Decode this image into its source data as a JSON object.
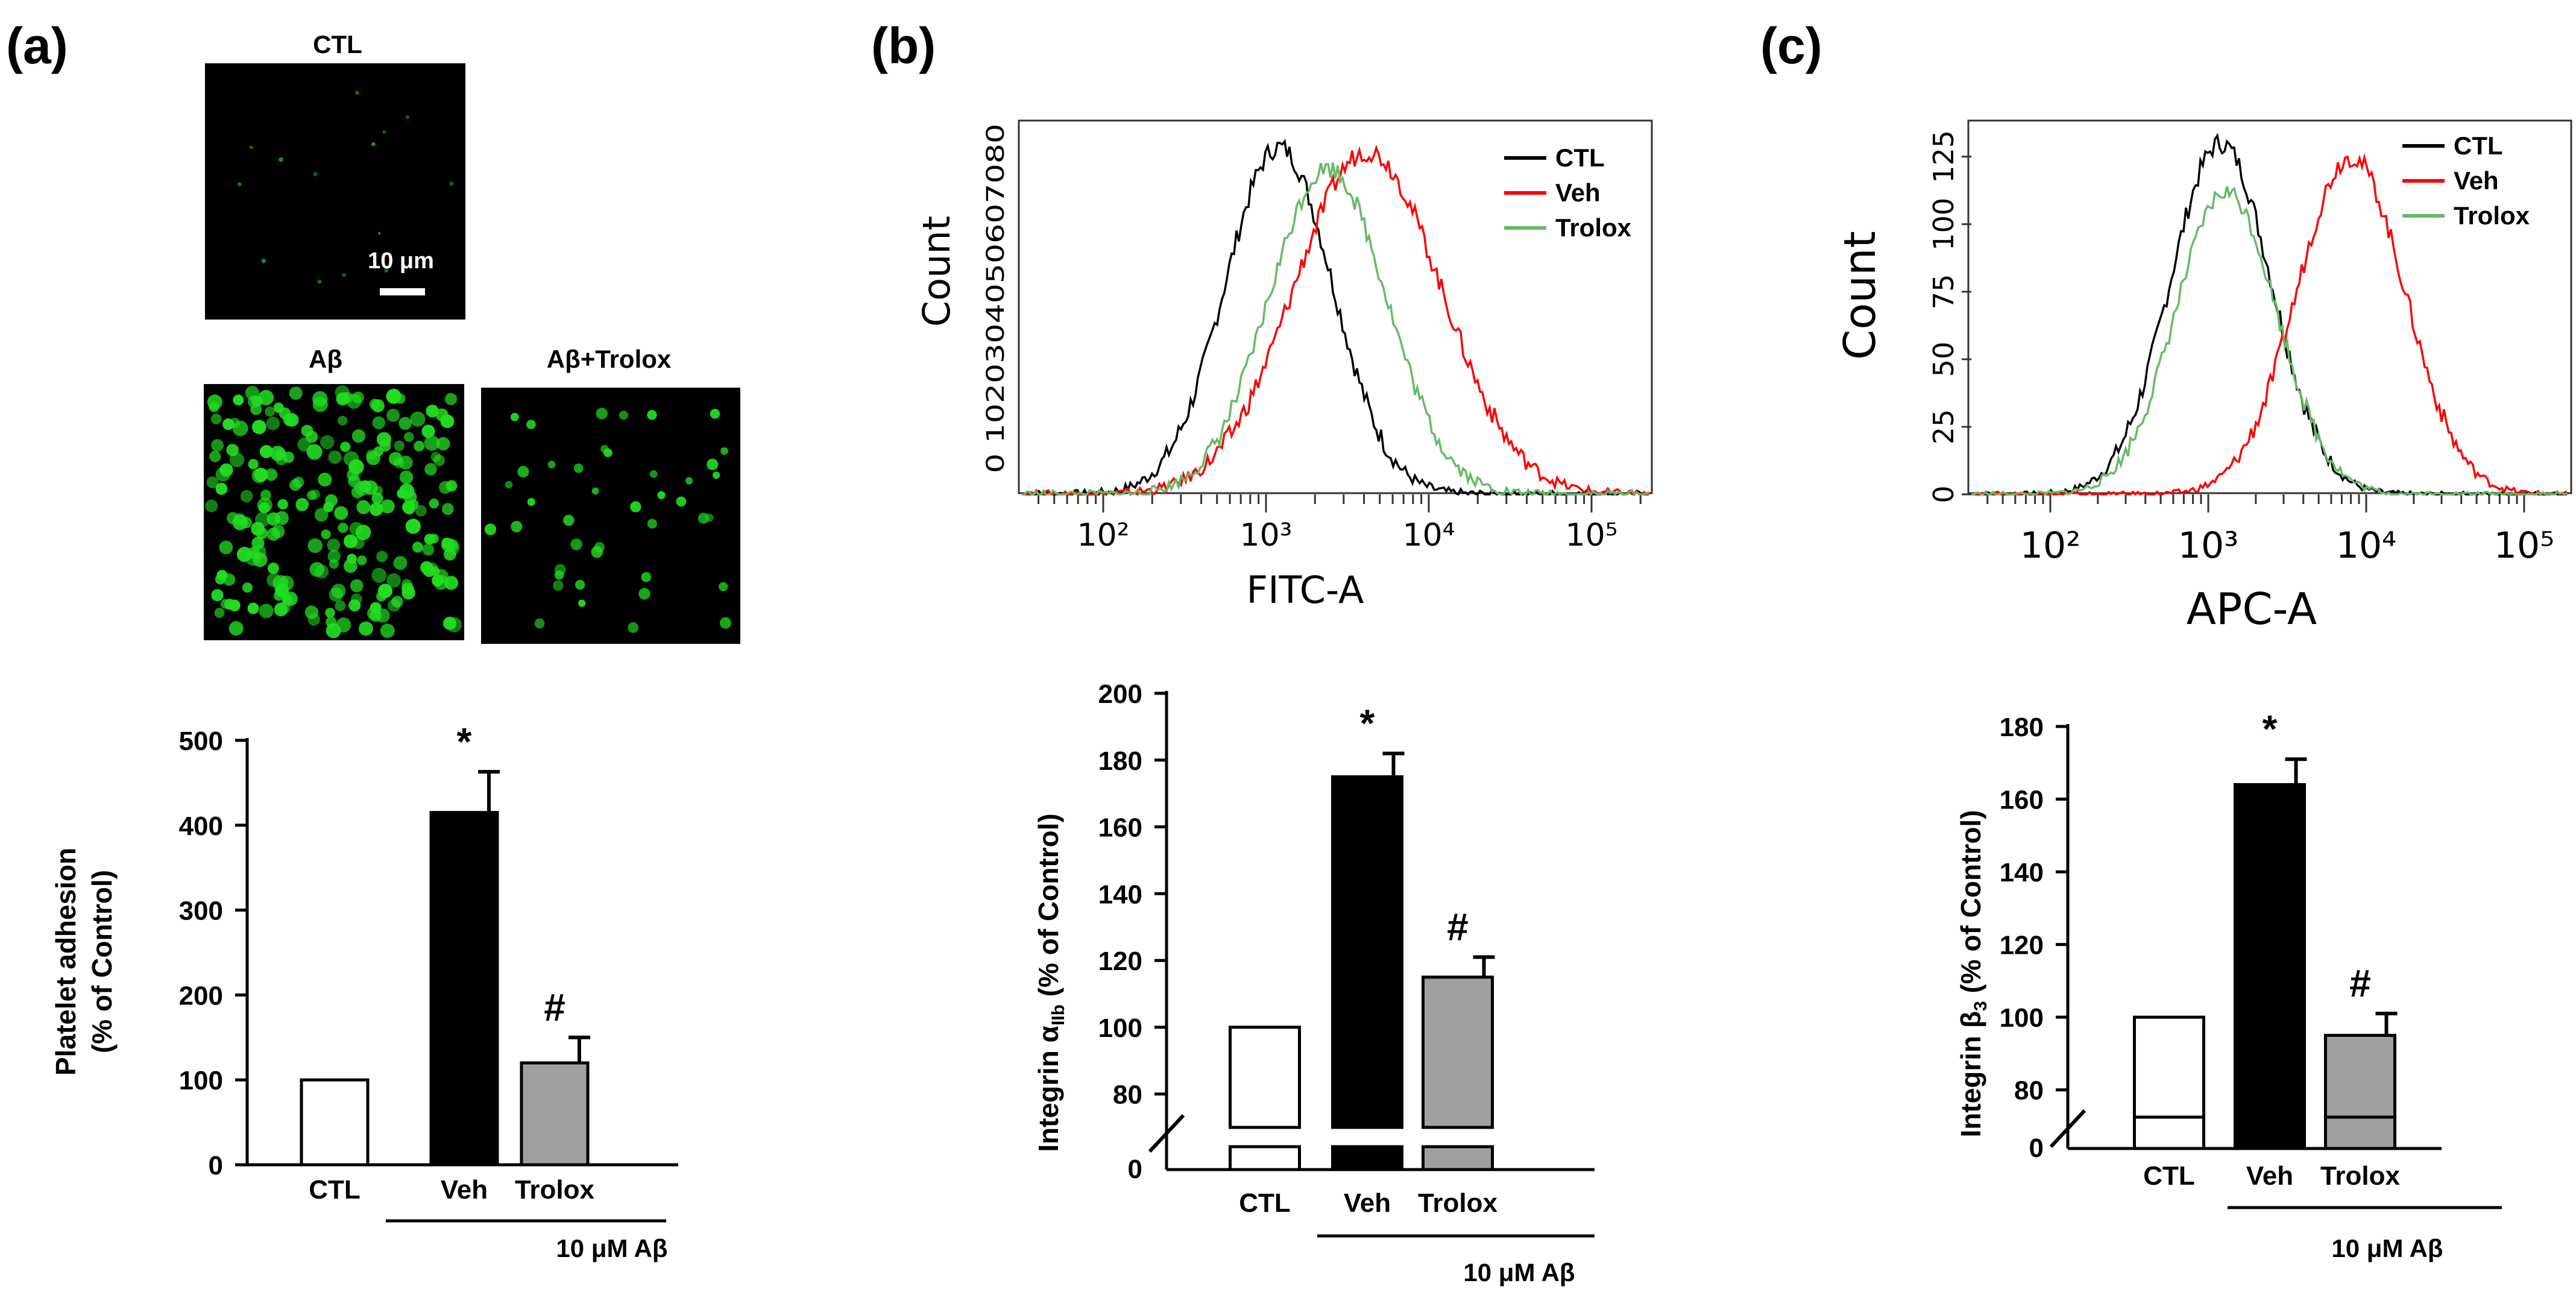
{
  "panels": [
    {
      "label": "(a)"
    },
    {
      "label": "(b)"
    },
    {
      "label": "(c)"
    }
  ],
  "micrographs": {
    "titles": [
      "CTL",
      "Aβ",
      "Aβ+Trolox"
    ],
    "scale_label": "10 μm",
    "fluorescence_color": "#22dd22"
  },
  "colors": {
    "ctl": "#000000",
    "veh": "#ff0000",
    "trolox": "#66bb66"
  },
  "chart_data": [
    {
      "type": "bar",
      "panel": "(a)",
      "ylabel_line1": "Platelet adhesion",
      "ylabel_line2": "(% of Control)",
      "categories": [
        "CTL",
        "Veh",
        "Trolox"
      ],
      "values": [
        100,
        415,
        120
      ],
      "errors": [
        0,
        48,
        30
      ],
      "fills": [
        "#ffffff",
        "#000000",
        "#a0a0a0"
      ],
      "annotations": [
        "",
        "*",
        "#"
      ],
      "ylim": [
        0,
        500
      ],
      "yticks": [
        "0",
        "100",
        "200",
        "300",
        "400",
        "500"
      ],
      "group_label": "10 μM Aβ"
    },
    {
      "type": "line",
      "panel": "(b)",
      "xlabel": "FITC-A",
      "ylabel": "Count",
      "x_scale": "log",
      "xticks": [
        "10²",
        "10³",
        "10⁴",
        "10⁵"
      ],
      "ytick_text": "0 1020304050607080",
      "ylim": [
        0,
        85
      ],
      "series": [
        {
          "name": "CTL",
          "mode": 1200,
          "width": 0.33,
          "peak": 83
        },
        {
          "name": "Veh",
          "mode": 4200,
          "width": 0.45,
          "peak": 82
        },
        {
          "name": "Trolox",
          "mode": 2400,
          "width": 0.36,
          "peak": 78
        }
      ]
    },
    {
      "type": "line",
      "panel": "(c)",
      "xlabel": "APC-A",
      "ylabel": "Count",
      "x_scale": "log",
      "xticks": [
        "10²",
        "10³",
        "10⁴",
        "10⁵"
      ],
      "yticks": [
        "0",
        "25",
        "50",
        "75",
        "100",
        "125"
      ],
      "ylim": [
        0,
        135
      ],
      "series": [
        {
          "name": "CTL",
          "mode": 1200,
          "width": 0.32,
          "peak": 130
        },
        {
          "name": "Veh",
          "mode": 8000,
          "width": 0.34,
          "peak": 125
        },
        {
          "name": "Trolox",
          "mode": 1300,
          "width": 0.32,
          "peak": 112
        }
      ]
    },
    {
      "type": "bar",
      "panel": "(b)",
      "ylabel_prefix": "Integrin α",
      "ylabel_sub": "IIb",
      "ylabel_suffix": " (% of Control)",
      "categories": [
        "CTL",
        "Veh",
        "Trolox"
      ],
      "values": [
        100,
        175,
        115
      ],
      "errors": [
        0,
        7,
        6
      ],
      "fills": [
        "#ffffff",
        "#000000",
        "#a0a0a0"
      ],
      "annotations": [
        "",
        "*",
        "#"
      ],
      "ylim": [
        70,
        200
      ],
      "yticks": [
        "80",
        "100",
        "120",
        "140",
        "160",
        "180",
        "200"
      ],
      "zero_label": "0",
      "group_label": "10 μM Aβ"
    },
    {
      "type": "bar",
      "panel": "(c)",
      "ylabel_prefix": "Integrin β",
      "ylabel_sub": "3",
      "ylabel_suffix": " (% of Control)",
      "categories": [
        "CTL",
        "Veh",
        "Trolox"
      ],
      "values": [
        100,
        164,
        95
      ],
      "errors": [
        0,
        7,
        6
      ],
      "fills": [
        "#ffffff",
        "#000000",
        "#a0a0a0"
      ],
      "annotations": [
        "",
        "*",
        "#"
      ],
      "ylim": [
        70,
        180
      ],
      "yticks": [
        "80",
        "100",
        "120",
        "140",
        "160",
        "180"
      ],
      "zero_label": "0",
      "group_label": "10 μM Aβ"
    }
  ]
}
